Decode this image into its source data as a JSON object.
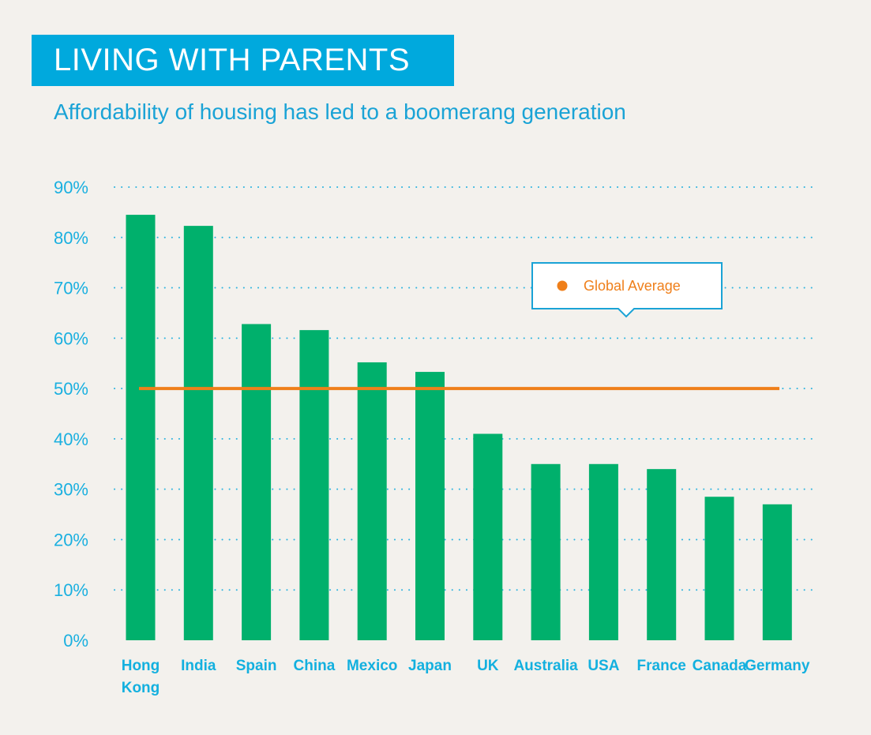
{
  "header": {
    "title": "LIVING WITH PARENTS",
    "subtitle": "Affordability of housing has led to a boomerang generation"
  },
  "colors": {
    "background": "#f3f1ed",
    "banner": "#00a9dd",
    "bar": "#00b06c",
    "average_line": "#ef7f1a",
    "axis_text": "#1ab0e0",
    "gridline": "#2bb3df"
  },
  "chart_data": {
    "type": "bar",
    "categories": [
      "Hong Kong",
      "India",
      "Spain",
      "China",
      "Mexico",
      "Japan",
      "UK",
      "Australia",
      "USA",
      "France",
      "Canada",
      "Germany"
    ],
    "category_lines": [
      [
        "Hong",
        "Kong"
      ],
      [
        "India"
      ],
      [
        "Spain"
      ],
      [
        "China"
      ],
      [
        "Mexico"
      ],
      [
        "Japan"
      ],
      [
        "UK"
      ],
      [
        "Australia"
      ],
      [
        "USA"
      ],
      [
        "France"
      ],
      [
        "Canada"
      ],
      [
        "Germany"
      ]
    ],
    "values": [
      84.5,
      82.3,
      62.8,
      61.6,
      55.2,
      53.3,
      41.0,
      35.0,
      35.0,
      34.0,
      28.5,
      27.0
    ],
    "y_ticks": [
      0,
      10,
      20,
      30,
      40,
      50,
      60,
      70,
      80,
      90
    ],
    "y_tick_labels": [
      "0%",
      "10%",
      "20%",
      "30%",
      "40%",
      "50%",
      "60%",
      "70%",
      "80%",
      "90%"
    ],
    "ylim": [
      0,
      90
    ],
    "reference_line": {
      "name": "Global Average",
      "value": 50
    },
    "legend": {
      "label": "Global Average",
      "position": "top-right"
    },
    "grid": true,
    "title": "LIVING WITH PARENTS",
    "subtitle": "Affordability of housing has led to a boomerang generation",
    "xlabel": "",
    "ylabel": ""
  }
}
